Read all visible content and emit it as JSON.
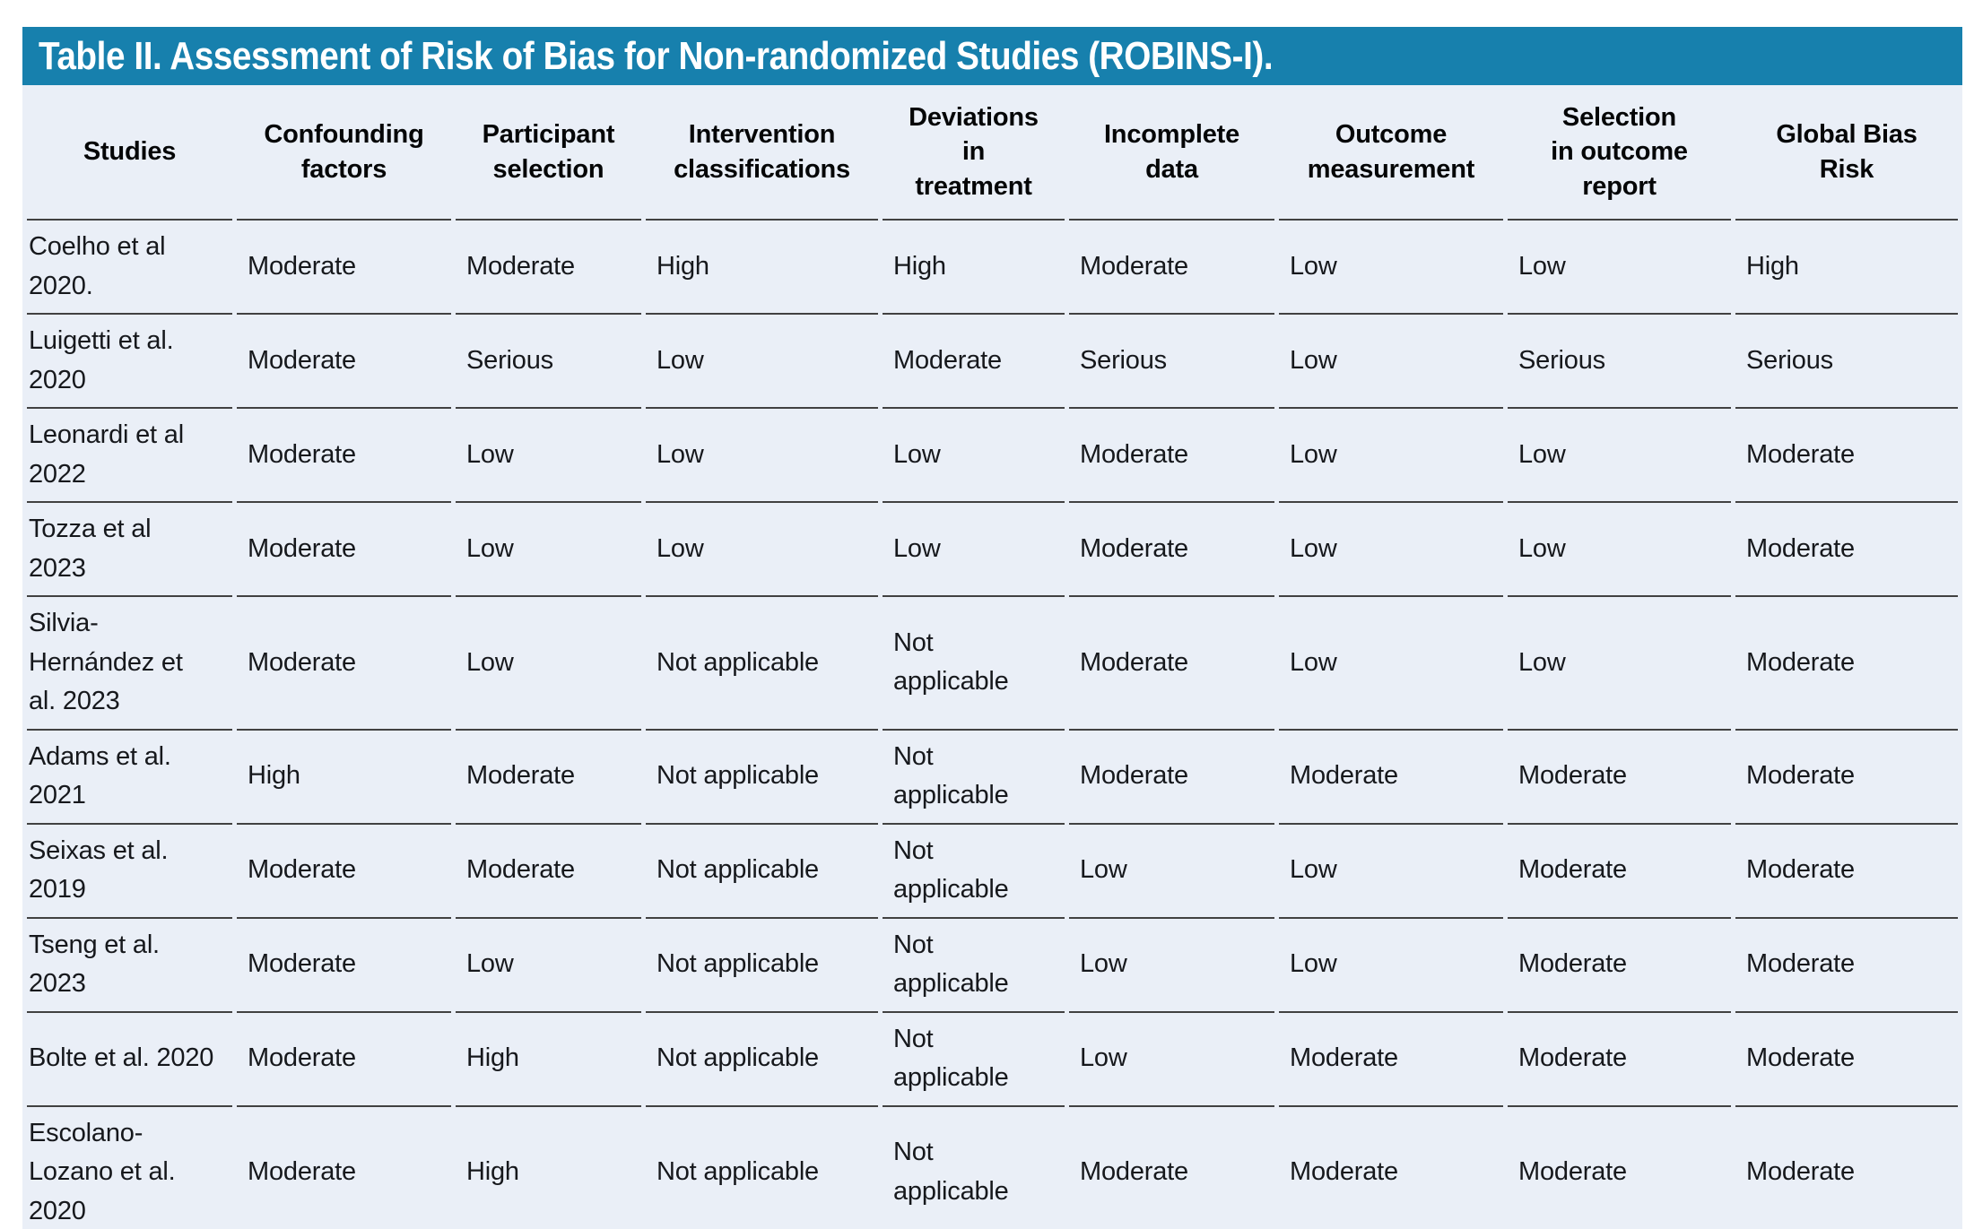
{
  "title": "Table II. Assessment of Risk of Bias for Non-randomized Studies (ROBINS-I).",
  "colors": {
    "header_bar": "#1780AD",
    "table_background": "#EAEFF7",
    "row_line": "#414141",
    "title_text": "#FFFFFF",
    "body_text": "#16181C"
  },
  "table": {
    "columns": [
      "Studies",
      "Confounding factors",
      "Participant selection",
      "Intervention classifications",
      "Deviations in treatment",
      "Incomplete data",
      "Outcome measurement",
      "Selection in outcome report",
      "Global Bias Risk"
    ],
    "rows": [
      {
        "study": "Coelho et al 2020.",
        "values": [
          "Moderate",
          "Moderate",
          "High",
          "High",
          "Moderate",
          "Low",
          "Low",
          "High"
        ]
      },
      {
        "study": "Luigetti et al. 2020",
        "values": [
          "Moderate",
          "Serious",
          "Low",
          "Moderate",
          "Serious",
          "Low",
          "Serious",
          "Serious"
        ]
      },
      {
        "study": "Leonardi et al 2022",
        "values": [
          "Moderate",
          "Low",
          "Low",
          "Low",
          "Moderate",
          "Low",
          "Low",
          "Moderate"
        ]
      },
      {
        "study": "Tozza et al 2023",
        "values": [
          "Moderate",
          "Low",
          "Low",
          "Low",
          "Moderate",
          "Low",
          "Low",
          "Moderate"
        ]
      },
      {
        "study": "Silvia-Hernández et al. 2023",
        "values": [
          "Moderate",
          "Low",
          "Not applicable",
          "Not applicable",
          "Moderate",
          "Low",
          "Low",
          "Moderate"
        ]
      },
      {
        "study": "Adams et al. 2021",
        "values": [
          "High",
          "Moderate",
          "Not applicable",
          "Not applicable",
          "Moderate",
          "Moderate",
          "Moderate",
          "Moderate"
        ]
      },
      {
        "study": "Seixas et al. 2019",
        "values": [
          "Moderate",
          "Moderate",
          "Not applicable",
          "Not applicable",
          "Low",
          "Low",
          "Moderate",
          "Moderate"
        ]
      },
      {
        "study": "Tseng et al. 2023",
        "values": [
          "Moderate",
          "Low",
          "Not applicable",
          "Not applicable",
          "Low",
          "Low",
          "Moderate",
          "Moderate"
        ]
      },
      {
        "study": "Bolte et al. 2020",
        "values": [
          "Moderate",
          "High",
          "Not applicable",
          "Not applicable",
          "Low",
          "Moderate",
          "Moderate",
          "Moderate"
        ]
      },
      {
        "study": "Escolano-Lozano et al. 2020",
        "values": [
          "Moderate",
          "High",
          "Not applicable",
          "Not applicable",
          "Moderate",
          "Moderate",
          "Moderate",
          "Moderate"
        ]
      }
    ]
  }
}
